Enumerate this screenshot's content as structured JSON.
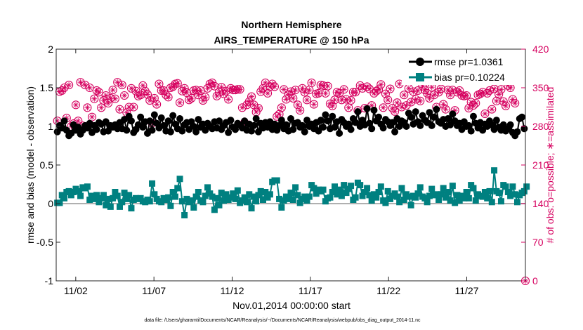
{
  "chart_data": {
    "type": "line",
    "title_line1": "Northern Hemisphere",
    "title_line2": "AIRS_TEMPERATURE @ 150 hPa",
    "xlabel": "Nov.01,2014 00:00:00 start",
    "ylabel_left": "rmse and bias (model - observation)",
    "ylabel_right": "# of obs: o=possible; ∗=assimilated",
    "footnote": "data file: /Users/gharamti/Documents/NCAR/Reanalysis/~/Documents/NCAR/Reanalysis/webpub/obs_diag_output_2014-11.nc",
    "xlim": [
      0.75,
      30.75
    ],
    "ylim_left": [
      -1,
      2
    ],
    "ylim_right": [
      0,
      420
    ],
    "x_ticks": [
      {
        "x": 2,
        "label": "11/02"
      },
      {
        "x": 7,
        "label": "11/07"
      },
      {
        "x": 12,
        "label": "11/12"
      },
      {
        "x": 17,
        "label": "11/17"
      },
      {
        "x": 22,
        "label": "11/22"
      },
      {
        "x": 27,
        "label": "11/27"
      }
    ],
    "y_ticks_left": [
      "2",
      "1.5",
      "1",
      "0.5",
      "0",
      "-0.5",
      "-1"
    ],
    "y_ticks_right": [
      "420",
      "350",
      "280",
      "210",
      "140",
      "70",
      "0"
    ],
    "grid": false,
    "legend_position": "top-right",
    "colors": {
      "rmse": "#000000",
      "bias": "#008080",
      "obs": "#d6005f",
      "zero_line": "#b0b0b0"
    },
    "series": [
      {
        "name": "rmse pr=1.0361",
        "axis": "left",
        "values": [
          0.93,
          1.01,
          0.98,
          1.07,
          0.95,
          0.88,
          0.91,
          1.02,
          0.95,
          0.99,
          0.9,
          0.95,
          1.01,
          0.98,
          1.04,
          0.92,
          1.01,
          0.96,
          1.05,
          1.03,
          0.93,
          1.06,
          0.94,
          1.01,
          0.99,
          1.02,
          0.97,
          1.05,
          0.97,
          1.09,
          0.95,
          1.13,
          1.07,
          0.92,
          0.96,
          1.02,
          1.12,
          0.99,
          1.06,
          0.91,
          1.07,
          0.95,
          1.15,
          1.04,
          0.98,
          1.11,
          1.01,
          0.94,
          1.07,
          0.93,
          1.14,
          1.03,
          0.97,
          1.1,
          0.94,
          1.02,
          1.05,
          0.96,
          1.06,
          1.0,
          0.93,
          1.09,
          0.99,
          1.03,
          0.95,
          1.04,
          1.0,
          0.97,
          1.06,
          0.98,
          1.07,
          0.96,
          1.01,
          1.05,
          0.92,
          1.08,
          0.99,
          0.96,
          1.04,
          1.02,
          0.98,
          1.07,
          0.95,
          1.03,
          0.94,
          1.01,
          1.1,
          0.93,
          1.04,
          0.98,
          1.05,
          0.99,
          1.06,
          0.96,
          1.03,
          0.95,
          1.01,
          1.08,
          0.97,
          1.02,
          0.94,
          1.1,
          0.96,
          1.04,
          1.05,
          0.99,
          1.01,
          0.93,
          1.08,
          1.0,
          1.03,
          0.97,
          1.05,
          0.94,
          1.08,
          0.99,
          1.15,
          1.07,
          0.97,
          1.13,
          0.99,
          1.06,
          0.91,
          1.09,
          1.05,
          1.0,
          1.03,
          0.96,
          1.1,
          1.05,
          1.19,
          1.0,
          1.08,
          1.02,
          1.23,
          1.04,
          0.97,
          1.21,
          1.07,
          1.12,
          1.03,
          0.98,
          1.09,
          1.06,
          1.01,
          1.05,
          0.93,
          1.1,
          1.0,
          1.07,
          1.05,
          1.0,
          1.17,
          1.12,
          1.03,
          1.19,
          1.06,
          1.01,
          1.14,
          1.08,
          1.05,
          1.18,
          1.01,
          1.12,
          1.22,
          1.06,
          1.04,
          1.09,
          1.0,
          1.1,
          1.02,
          1.16,
          1.07,
          1.01,
          1.04,
          0.96,
          1.06,
          1.0,
          1.01,
          0.94,
          1.13,
          1.04,
          0.98,
          1.05,
          0.95,
          1.03,
          1.0,
          1.07,
          1.02,
          0.96,
          1.08,
          0.99,
          0.95,
          1.02,
          0.94,
          0.97,
          1.02,
          0.92,
          0.88,
          0.93,
          1.1,
          1.12,
          0.97
        ]
      },
      {
        "name": "bias pr=0.10224",
        "axis": "left",
        "values": [
          0.01,
          0.01,
          0.11,
          0.07,
          0.15,
          0.16,
          0.11,
          0.15,
          0.19,
          0.16,
          0.1,
          0.21,
          0.2,
          0.22,
          0.05,
          0.1,
          0.06,
          0.11,
          0.02,
          0.07,
          0.11,
          -0.02,
          0.06,
          -0.04,
          0.07,
          0.15,
          0.1,
          -0.04,
          0.02,
          0.14,
          0.06,
          0.11,
          -0.06,
          0.05,
          0.07,
          0.06,
          0.07,
          0.03,
          0.02,
          0.05,
          0.03,
          0.26,
          0.12,
          0.06,
          0.03,
          0.02,
          0.07,
          0.05,
          0.08,
          -0.03,
          0.15,
          0.09,
          0.2,
          0.32,
          0.03,
          -0.15,
          0.06,
          0.02,
          0.04,
          -0.05,
          0.09,
          0.15,
          0.04,
          0.02,
          0.1,
          0.21,
          0.13,
          0.09,
          -0.08,
          0.07,
          -0.02,
          0.14,
          0.04,
          0.12,
          0.05,
          0.08,
          0.13,
          0.06,
          0.17,
          0.01,
          0.04,
          0.08,
          0.02,
          0.12,
          -0.06,
          0.09,
          0.03,
          0.11,
          0.16,
          0.05,
          0.15,
          0.08,
          0.12,
          0.28,
          0.3,
          0.3,
          0.06,
          -0.05,
          0.04,
          0.09,
          0.06,
          0.14,
          0.05,
          0.21,
          0.11,
          0.01,
          0.06,
          0.09,
          0.04,
          0.09,
          0.24,
          0.2,
          0.13,
          0.18,
          0.16,
          0.18,
          0.03,
          0.07,
          0.08,
          0.15,
          0.22,
          0.12,
          0.18,
          0.1,
          0.24,
          0.14,
          0.19,
          0.23,
          0.05,
          0.08,
          0.27,
          0.24,
          0.1,
          0.15,
          0.2,
          0.11,
          0.04,
          0.12,
          0.08,
          0.15,
          0.22,
          0.04,
          0.01,
          0.16,
          0.06,
          0.1,
          0.13,
          0.09,
          0.02,
          0.2,
          0.05,
          0.12,
          0.09,
          -0.02,
          0.1,
          0.08,
          0.13,
          0.21,
          0.09,
          0.07,
          0.02,
          0.1,
          0.19,
          0.11,
          0.12,
          0.05,
          0.12,
          0.2,
          0.08,
          0.15,
          0.04,
          0.23,
          0.01,
          0.11,
          0.04,
          0.1,
          0.07,
          0.15,
          0.07,
          0.24,
          0.2,
          0.04,
          0.12,
          0.1,
          0.09,
          0.15,
          0.07,
          0.16,
          0.02,
          0.43,
          0.16,
          0.14,
          0.03,
          0.24,
          0.22,
          0.15,
          0.1,
          0.22,
          0.12,
          0.02,
          0.11,
          0.14,
          0.16,
          0.22
        ]
      },
      {
        "name": "possible",
        "axis": "right",
        "values": [
          290,
          343,
          345,
          350,
          295,
          355,
          280,
          285,
          319,
          290,
          360,
          281,
          355,
          314,
          350,
          297,
          330,
          345,
          342,
          314,
          327,
          336,
          322,
          331,
          346,
          330,
          360,
          311,
          355,
          336,
          305,
          315,
          349,
          315,
          344,
          335,
          337,
          354,
          344,
          338,
          327,
          286,
          331,
          320,
          357,
          345,
          345,
          337,
          333,
          350,
          352,
          357,
          358,
          323,
          344,
          349,
          341,
          328,
          331,
          345,
          346,
          337,
          345,
          327,
          333,
          349,
          357,
          359,
          353,
          335,
          342,
          351,
          339,
          344,
          329,
          349,
          346,
          346,
          347,
          347,
          314,
          287,
          319,
          325,
          334,
          319,
          306,
          313,
          343,
          349,
          359,
          340,
          352,
          357,
          352,
          298,
          302,
          314,
          347,
          329,
          338,
          343,
          331,
          346,
          319,
          309,
          349,
          342,
          328,
          346,
          359,
          320,
          339,
          340,
          355,
          354,
          340,
          353,
          321,
          317,
          328,
          342,
          340,
          328,
          347,
          329,
          314,
          327,
          342,
          342,
          309,
          354,
          349,
          313,
          352,
          348,
          318,
          340,
          344,
          347,
          356,
          314,
          339,
          328,
          348,
          313,
          307,
          323,
          357,
          315,
          337,
          318,
          349,
          324,
          343,
          329,
          345,
          326,
          353,
          346,
          340,
          331,
          351,
          337,
          315,
          342,
          348,
          320,
          311,
          346,
          337,
          346,
          309,
          342,
          345,
          336,
          335,
          336,
          313,
          324,
          318,
          322,
          337,
          339,
          342,
          303,
          340,
          345,
          311,
          348,
          326,
          338,
          347,
          325,
          317,
          354,
          350,
          329,
          322
        ]
      },
      {
        "name": "assimilated",
        "axis": "right",
        "values": [
          290,
          343,
          345,
          350,
          295,
          355,
          280,
          285,
          319,
          290,
          360,
          281,
          355,
          314,
          350,
          297,
          330,
          345,
          342,
          314,
          327,
          336,
          322,
          331,
          346,
          330,
          360,
          311,
          355,
          336,
          305,
          315,
          349,
          315,
          344,
          335,
          337,
          354,
          344,
          338,
          327,
          286,
          331,
          320,
          357,
          345,
          345,
          337,
          333,
          350,
          352,
          357,
          358,
          323,
          344,
          349,
          341,
          328,
          331,
          345,
          346,
          337,
          345,
          327,
          333,
          349,
          357,
          359,
          353,
          335,
          342,
          351,
          339,
          344,
          329,
          349,
          346,
          346,
          347,
          347,
          314,
          287,
          319,
          325,
          334,
          319,
          306,
          313,
          343,
          349,
          359,
          340,
          352,
          357,
          352,
          298,
          302,
          314,
          347,
          329,
          338,
          343,
          331,
          346,
          319,
          309,
          349,
          342,
          328,
          346,
          359,
          320,
          339,
          340,
          355,
          354,
          340,
          353,
          321,
          317,
          328,
          342,
          340,
          328,
          347,
          329,
          314,
          327,
          342,
          342,
          309,
          354,
          349,
          313,
          352,
          348,
          318,
          340,
          344,
          347,
          356,
          314,
          339,
          328,
          348,
          313,
          307,
          323,
          357,
          315,
          337,
          318,
          349,
          324,
          343,
          329,
          345,
          326,
          353,
          346,
          340,
          331,
          351,
          337,
          315,
          342,
          348,
          320,
          311,
          346,
          337,
          346,
          309,
          342,
          345,
          336,
          335,
          336,
          313,
          324,
          318,
          322,
          337,
          339,
          342,
          303,
          340,
          345,
          311,
          348,
          326,
          338,
          347,
          325,
          317,
          354,
          350,
          329,
          322
        ]
      }
    ]
  }
}
